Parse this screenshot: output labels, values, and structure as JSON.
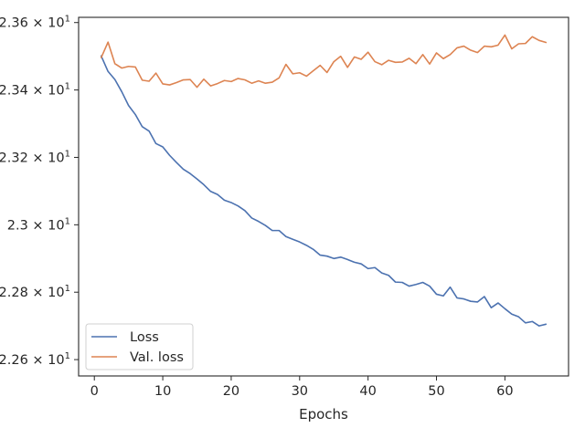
{
  "chart_data": {
    "type": "line",
    "title": "",
    "xlabel": "Epochs",
    "ylabel": "",
    "xlim": [
      -2.3,
      69.3
    ],
    "ylim": [
      22.5515,
      23.6155
    ],
    "x_ticks": [
      0,
      10,
      20,
      30,
      40,
      50,
      60
    ],
    "y_ticks": [
      {
        "value": 22.6,
        "label": "2.26 × 10^1"
      },
      {
        "value": 22.8,
        "label": "2.28 × 10^1"
      },
      {
        "value": 23.0,
        "label": "2.3 × 10^1"
      },
      {
        "value": 23.2,
        "label": "2.32 × 10^1"
      },
      {
        "value": 23.4,
        "label": "2.34 × 10^1"
      },
      {
        "value": 23.6,
        "label": "2.36 × 10^1"
      }
    ],
    "grid": false,
    "legend_position": "lower-left",
    "x": [
      1,
      2,
      3,
      4,
      5,
      6,
      7,
      8,
      9,
      10,
      11,
      12,
      13,
      14,
      15,
      16,
      17,
      18,
      19,
      20,
      21,
      22,
      23,
      24,
      25,
      26,
      27,
      28,
      29,
      30,
      31,
      32,
      33,
      34,
      35,
      36,
      37,
      38,
      39,
      40,
      41,
      42,
      43,
      44,
      45,
      46,
      47,
      48,
      49,
      50,
      51,
      52,
      53,
      54,
      55,
      56,
      57,
      58,
      59,
      60,
      61,
      62,
      63,
      64,
      65,
      66
    ],
    "series": [
      {
        "name": "Loss",
        "color": "#4c72b0",
        "values": [
          23.501,
          23.455,
          23.431,
          23.395,
          23.354,
          23.327,
          23.291,
          23.278,
          23.241,
          23.231,
          23.206,
          23.185,
          23.165,
          23.152,
          23.136,
          23.119,
          23.099,
          23.09,
          23.073,
          23.066,
          23.056,
          23.042,
          23.02,
          23.01,
          22.998,
          22.983,
          22.983,
          22.965,
          22.957,
          22.949,
          22.939,
          22.927,
          22.91,
          22.907,
          22.9,
          22.904,
          22.897,
          22.889,
          22.884,
          22.87,
          22.873,
          22.857,
          22.85,
          22.83,
          22.829,
          22.818,
          22.823,
          22.829,
          22.818,
          22.794,
          22.789,
          22.815,
          22.783,
          22.78,
          22.773,
          22.771,
          22.787,
          22.754,
          22.768,
          22.751,
          22.735,
          22.727,
          22.709,
          22.713,
          22.7,
          22.705
        ]
      },
      {
        "name": "Val. loss",
        "color": "#dd8452",
        "values": [
          23.496,
          23.542,
          23.478,
          23.465,
          23.47,
          23.468,
          23.429,
          23.426,
          23.45,
          23.418,
          23.415,
          23.422,
          23.43,
          23.431,
          23.408,
          23.432,
          23.412,
          23.419,
          23.428,
          23.425,
          23.434,
          23.43,
          23.42,
          23.427,
          23.42,
          23.423,
          23.436,
          23.476,
          23.448,
          23.451,
          23.441,
          23.457,
          23.473,
          23.452,
          23.484,
          23.5,
          23.467,
          23.498,
          23.491,
          23.512,
          23.484,
          23.475,
          23.488,
          23.482,
          23.483,
          23.494,
          23.478,
          23.505,
          23.477,
          23.51,
          23.493,
          23.505,
          23.525,
          23.53,
          23.518,
          23.511,
          23.53,
          23.528,
          23.533,
          23.563,
          23.522,
          23.537,
          23.538,
          23.558,
          23.547,
          23.541
        ]
      }
    ]
  }
}
